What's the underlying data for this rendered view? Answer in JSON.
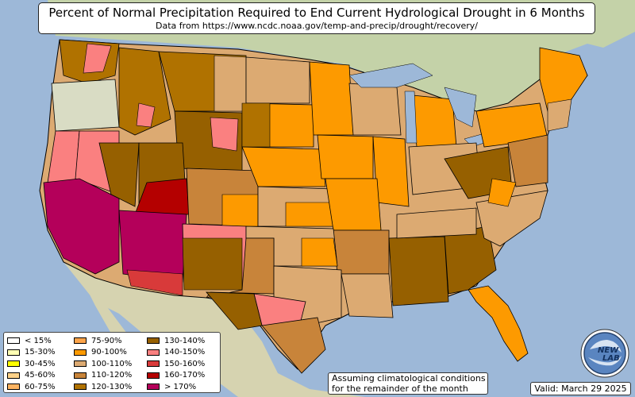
{
  "title": "Percent of Normal Precipitation Required to End Current Hydrological Drought in 6 Months",
  "subtitle": "Data from https://www.ncdc.noaa.gov/temp-and-precip/drought/recovery/",
  "note_line1": "Assuming climatological conditions",
  "note_line2": "for the remainder of the month",
  "valid": "Valid: March 29 2025",
  "logo_text_top": "NEW",
  "logo_text_bottom": "LAB",
  "colors": {
    "ocean": "#9db8d8",
    "land": "#d9dcc4",
    "land_green": "#a9c39a",
    "lake": "#9db8d8"
  },
  "legend": {
    "columns": [
      [
        {
          "label": "< 15%",
          "color": "#ffffff"
        },
        {
          "label": "15-30%",
          "color": "#ffffb4"
        },
        {
          "label": "30-45%",
          "color": "#ffff00"
        },
        {
          "label": "45-60%",
          "color": "#fdd28a"
        },
        {
          "label": "60-75%",
          "color": "#fdb462"
        }
      ],
      [
        {
          "label": "75-90%",
          "color": "#fda44a"
        },
        {
          "label": "90-100%",
          "color": "#fd9a00"
        },
        {
          "label": "100-110%",
          "color": "#dcaa72"
        },
        {
          "label": "110-120%",
          "color": "#c8843a"
        },
        {
          "label": "120-130%",
          "color": "#b07200"
        }
      ],
      [
        {
          "label": "130-140%",
          "color": "#966000"
        },
        {
          "label": "140-150%",
          "color": "#fa8080"
        },
        {
          "label": "150-160%",
          "color": "#d83a3a"
        },
        {
          "label": "160-170%",
          "color": "#b40000"
        },
        {
          "label": "> 170%",
          "color": "#b4005a"
        }
      ]
    ]
  }
}
